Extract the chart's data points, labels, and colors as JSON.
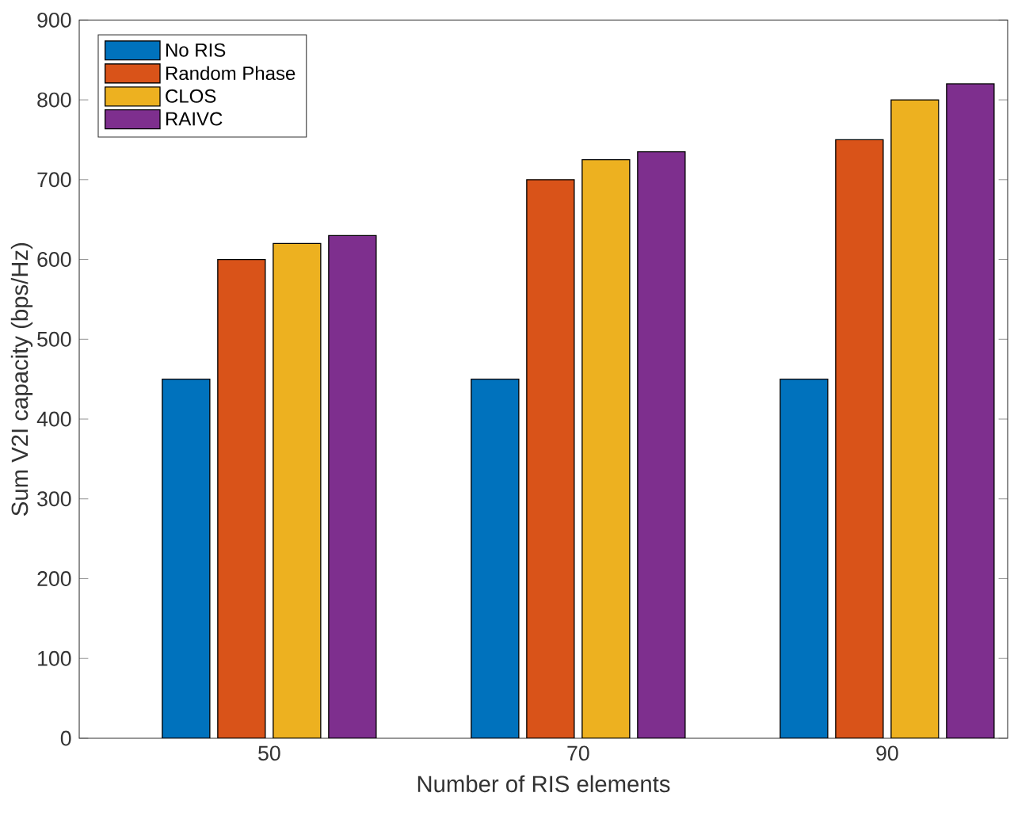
{
  "chart_data": {
    "type": "bar",
    "xlabel": "Number of RIS elements",
    "ylabel": "Sum V2I capacity (bps/Hz)",
    "categories": [
      "50",
      "70",
      "90"
    ],
    "series": [
      {
        "name": "No RIS",
        "color": "#0072bd",
        "values": [
          450,
          450,
          450
        ]
      },
      {
        "name": "Random Phase",
        "color": "#d95319",
        "values": [
          600,
          700,
          750
        ]
      },
      {
        "name": "CLOS",
        "color": "#edb120",
        "values": [
          620,
          725,
          800
        ]
      },
      {
        "name": "RAIVC",
        "color": "#7e2f8e",
        "values": [
          630,
          735,
          820
        ]
      }
    ],
    "ylim": [
      0,
      900
    ],
    "yticks": [
      0,
      100,
      200,
      300,
      400,
      500,
      600,
      700,
      800,
      900
    ],
    "legend": "top left",
    "grid": false
  }
}
